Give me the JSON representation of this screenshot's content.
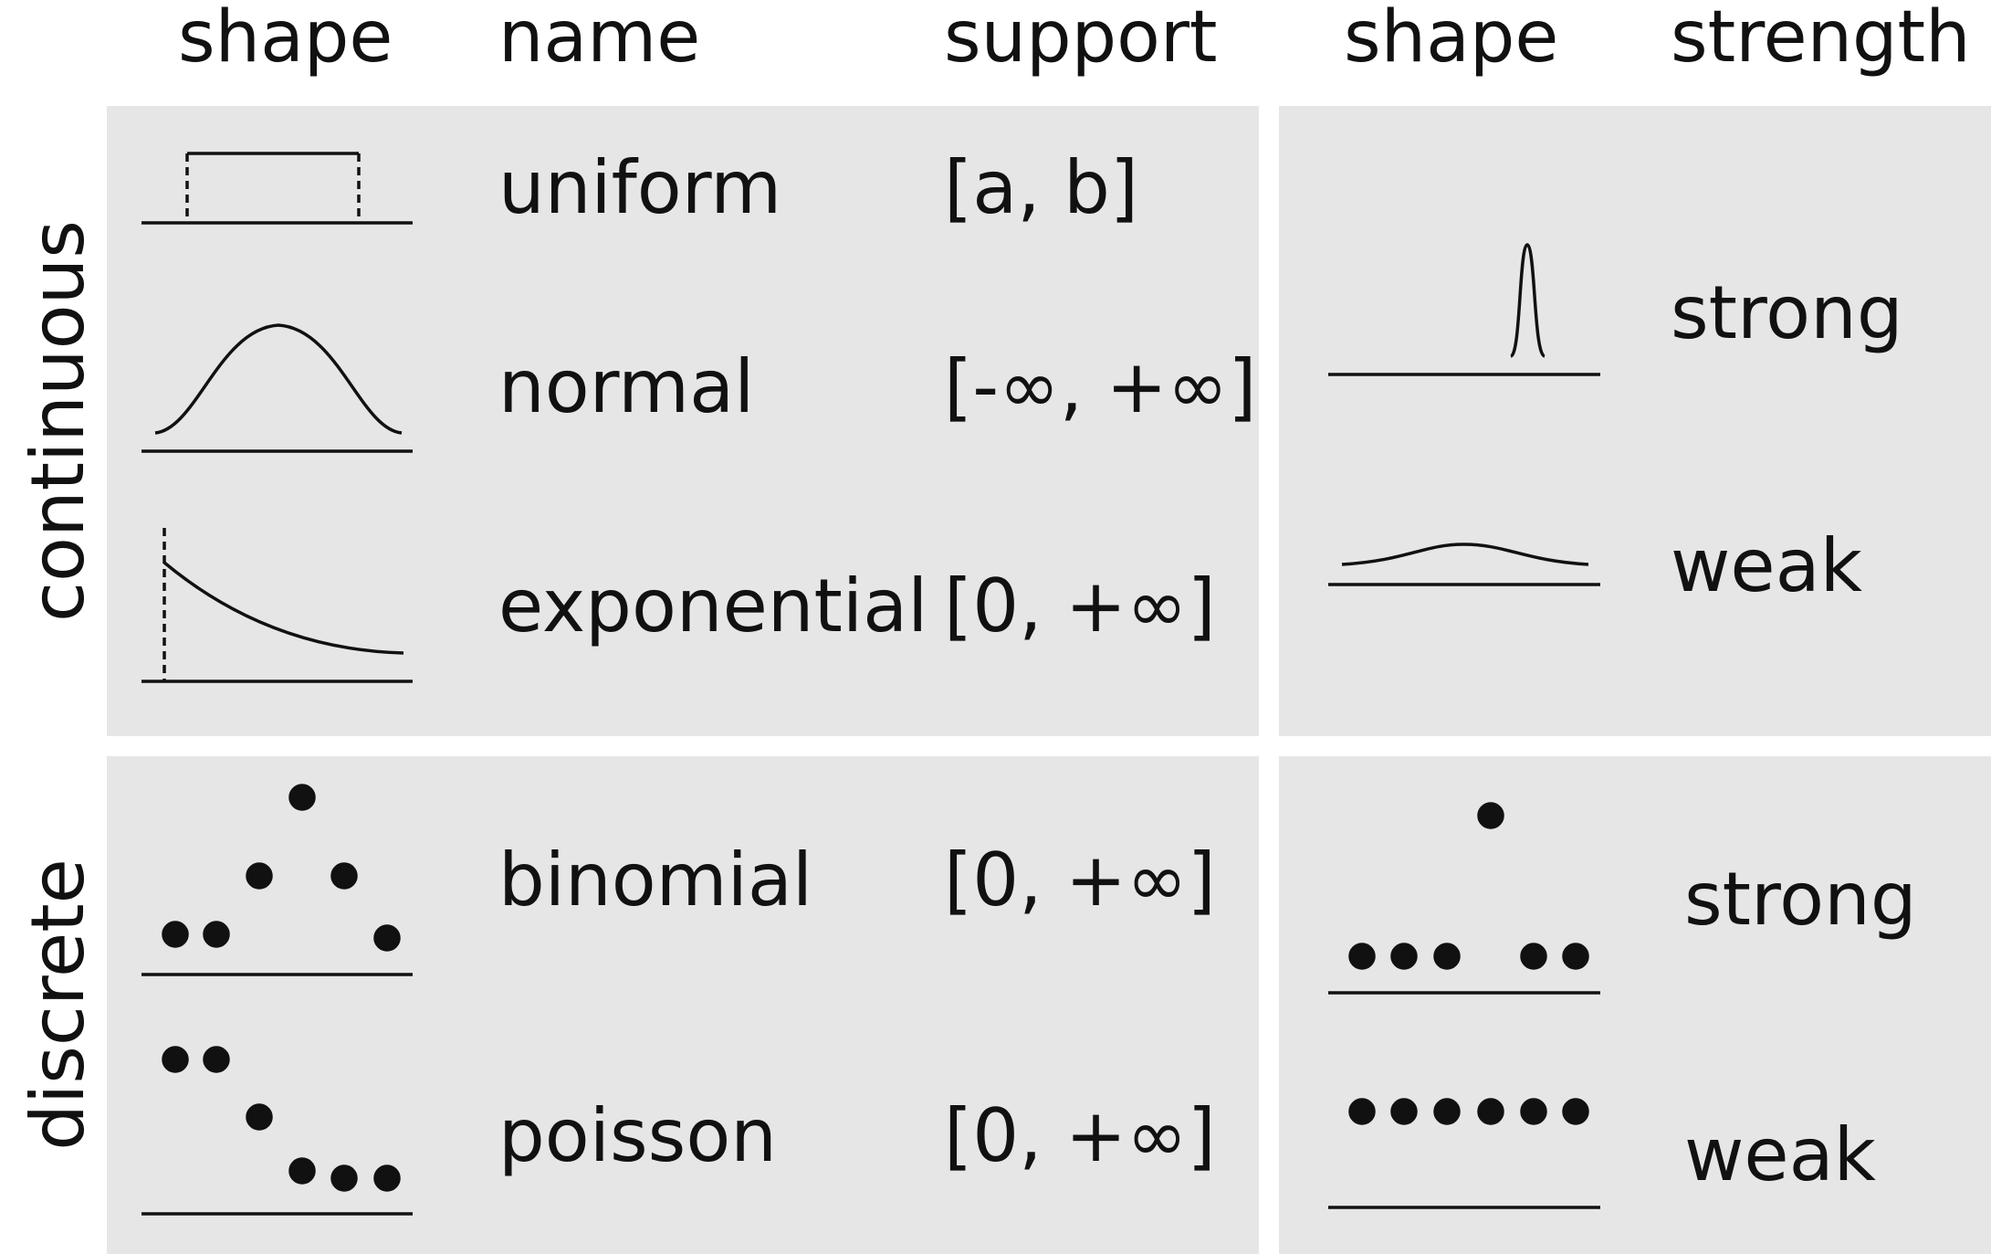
{
  "headers": {
    "shape_left": "shape",
    "name": "name",
    "support": "support",
    "shape_right": "shape",
    "strength": "strength"
  },
  "groups": {
    "continuous": "continuous",
    "discrete": "discrete"
  },
  "distributions": [
    {
      "name": "uniform",
      "support": "[a, b]",
      "shape_icon": "uniform-density-icon"
    },
    {
      "name": "normal",
      "support": "[-∞, +∞]",
      "shape_icon": "normal-density-icon"
    },
    {
      "name": "exponential",
      "support": "[0, +∞]",
      "shape_icon": "exponential-density-icon"
    },
    {
      "name": "binomial",
      "support": "[0, +∞]",
      "shape_icon": "binomial-mass-icon"
    },
    {
      "name": "poisson",
      "support": "[0, +∞]",
      "shape_icon": "poisson-mass-icon"
    }
  ],
  "strengths": {
    "continuous": [
      {
        "label": "strong",
        "shape_icon": "narrow-peak-icon"
      },
      {
        "label": "weak",
        "shape_icon": "flat-curve-icon"
      }
    ],
    "discrete": [
      {
        "label": "strong",
        "shape_icon": "single-high-dot-icon"
      },
      {
        "label": "weak",
        "shape_icon": "even-dots-icon"
      }
    ]
  }
}
